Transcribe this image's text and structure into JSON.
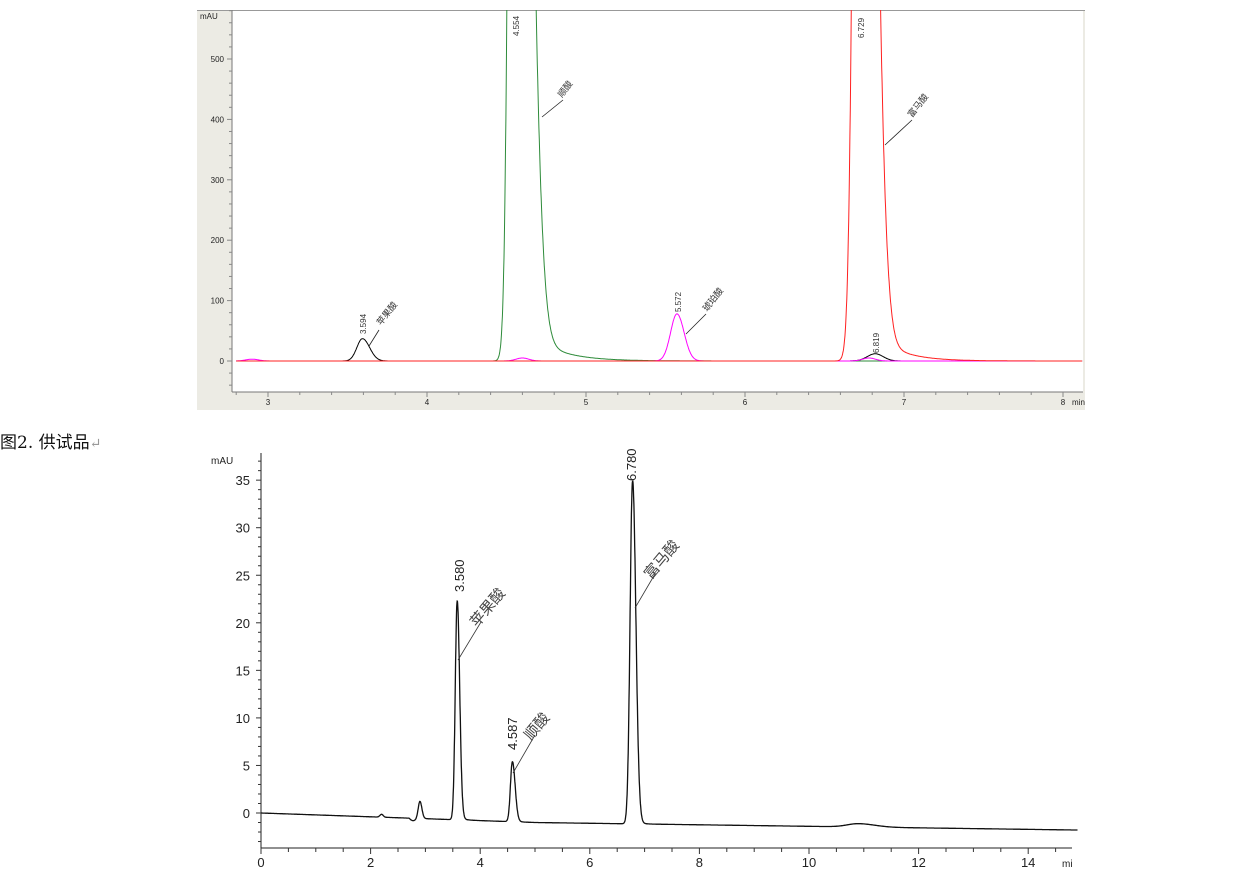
{
  "caption": {
    "text": "图2. 供试品",
    "mark": "↵"
  },
  "chart_data": [
    {
      "type": "line",
      "ylabel": "mAU",
      "xlabel": "min",
      "xlim": [
        2.77,
        8.13
      ],
      "ylim": [
        -51,
        581
      ],
      "xticks": [
        3,
        4,
        5,
        6,
        7,
        8
      ],
      "yticks": [
        0,
        100,
        200,
        300,
        400,
        500
      ],
      "grid": false,
      "series": [
        {
          "color": "#000000",
          "peaks": [
            {
              "rt": 3.594,
              "height": 37,
              "label": "3.594",
              "name": "苹果酸"
            },
            {
              "rt": 6.819,
              "height": 12,
              "label": "6.819"
            }
          ]
        },
        {
          "color": "#2e8b3a",
          "peaks": [
            {
              "rt": 4.554,
              "height": null,
              "off_scale": true,
              "label": "4.554",
              "name": "顺酸"
            }
          ]
        },
        {
          "color": "#ff00ff",
          "peaks": [
            {
              "rt": 2.9,
              "height": 3
            },
            {
              "rt": 4.6,
              "height": 5
            },
            {
              "rt": 5.572,
              "height": 78,
              "label": "5.572",
              "name": "琥珀酸"
            },
            {
              "rt": 6.78,
              "height": 5
            }
          ]
        },
        {
          "color": "#ff2020",
          "peaks": [
            {
              "rt": 6.729,
              "height": null,
              "off_scale": true,
              "label": "6.729",
              "name": "富马酸"
            }
          ]
        }
      ]
    },
    {
      "type": "line",
      "ylabel": "mAU",
      "xlabel": "mi",
      "xlim": [
        0,
        14.9
      ],
      "ylim": [
        -3.7,
        37.8
      ],
      "xticks": [
        0,
        2,
        4,
        6,
        8,
        10,
        12,
        14
      ],
      "yticks": [
        0,
        5,
        10,
        15,
        20,
        25,
        30,
        35
      ],
      "grid": false,
      "series": [
        {
          "color": "#111111",
          "peaks": [
            {
              "rt": 2.2,
              "height": 0.3
            },
            {
              "rt": 2.9,
              "height": 1.8
            },
            {
              "rt": 3.58,
              "height": 23,
              "label": "3.580",
              "name": "苹果酸"
            },
            {
              "rt": 4.587,
              "height": 6.3,
              "label": "4.587",
              "name": "顺酸"
            },
            {
              "rt": 6.78,
              "height": 36,
              "label": "6.780",
              "name": "富马酸"
            },
            {
              "rt": 10.9,
              "height": 0.35
            }
          ]
        }
      ]
    }
  ]
}
